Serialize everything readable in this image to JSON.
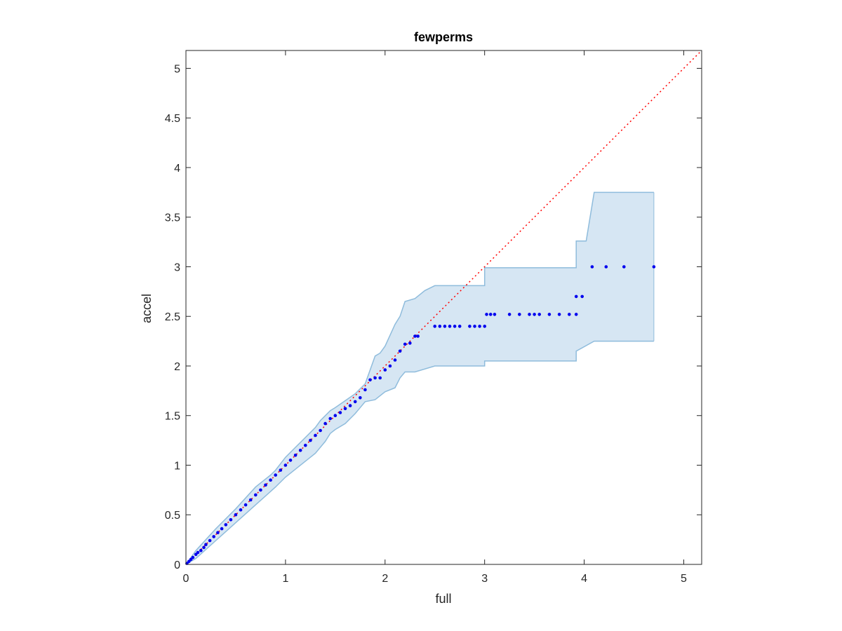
{
  "chart_data": {
    "type": "scatter",
    "title": "fewperms",
    "xlabel": "full",
    "ylabel": "accel",
    "xlim": [
      0,
      5.18
    ],
    "ylim": [
      0,
      5.18
    ],
    "xticks": [
      0,
      1,
      2,
      3,
      4,
      5
    ],
    "xtick_labels": [
      "0",
      "1",
      "2",
      "3",
      "4",
      "5"
    ],
    "yticks": [
      0,
      0.5,
      1,
      1.5,
      2,
      2.5,
      3,
      3.5,
      4,
      4.5,
      5
    ],
    "ytick_labels": [
      "0",
      "0.5",
      "1",
      "1.5",
      "2",
      "2.5",
      "3",
      "3.5",
      "4",
      "4.5",
      "5"
    ],
    "grid": false,
    "colors": {
      "points": "#0000ee",
      "band_fill": "#d6e6f3",
      "band_edge": "#8fbcdc",
      "reference_line": "#ff0000",
      "axes": "#262626"
    },
    "band": {
      "upper": [
        [
          0,
          0
        ],
        [
          0.1,
          0.14
        ],
        [
          0.3,
          0.36
        ],
        [
          0.5,
          0.56
        ],
        [
          0.7,
          0.78
        ],
        [
          0.85,
          0.9
        ],
        [
          0.9,
          0.95
        ],
        [
          1.0,
          1.08
        ],
        [
          1.1,
          1.18
        ],
        [
          1.2,
          1.28
        ],
        [
          1.3,
          1.38
        ],
        [
          1.35,
          1.45
        ],
        [
          1.45,
          1.55
        ],
        [
          1.5,
          1.58
        ],
        [
          1.6,
          1.65
        ],
        [
          1.7,
          1.72
        ],
        [
          1.8,
          1.82
        ],
        [
          1.85,
          1.96
        ],
        [
          1.9,
          2.1
        ],
        [
          1.95,
          2.13
        ],
        [
          2.0,
          2.2
        ],
        [
          2.1,
          2.42
        ],
        [
          2.15,
          2.5
        ],
        [
          2.2,
          2.65
        ],
        [
          2.3,
          2.68
        ],
        [
          2.4,
          2.76
        ],
        [
          2.5,
          2.81
        ],
        [
          3.0,
          2.81
        ],
        [
          3.0,
          2.99
        ],
        [
          3.92,
          2.99
        ],
        [
          3.92,
          3.26
        ],
        [
          4.02,
          3.26
        ],
        [
          4.1,
          3.75
        ],
        [
          4.7,
          3.75
        ]
      ],
      "lower": [
        [
          0,
          0
        ],
        [
          0.1,
          0.06
        ],
        [
          0.3,
          0.24
        ],
        [
          0.5,
          0.42
        ],
        [
          0.7,
          0.6
        ],
        [
          0.9,
          0.78
        ],
        [
          1.0,
          0.88
        ],
        [
          1.1,
          0.96
        ],
        [
          1.2,
          1.04
        ],
        [
          1.3,
          1.12
        ],
        [
          1.4,
          1.24
        ],
        [
          1.45,
          1.32
        ],
        [
          1.5,
          1.36
        ],
        [
          1.6,
          1.42
        ],
        [
          1.7,
          1.52
        ],
        [
          1.8,
          1.64
        ],
        [
          1.9,
          1.66
        ],
        [
          2.0,
          1.74
        ],
        [
          2.1,
          1.78
        ],
        [
          2.15,
          1.88
        ],
        [
          2.2,
          1.94
        ],
        [
          2.3,
          1.94
        ],
        [
          2.5,
          2.0
        ],
        [
          3.0,
          2.0
        ],
        [
          3.0,
          2.05
        ],
        [
          3.92,
          2.05
        ],
        [
          3.92,
          2.15
        ],
        [
          4.1,
          2.25
        ],
        [
          4.7,
          2.25
        ]
      ]
    },
    "reference_line": {
      "from": [
        0,
        0
      ],
      "to": [
        5.18,
        5.18
      ],
      "style": "dotted"
    },
    "points": [
      [
        0.01,
        0.01
      ],
      [
        0.03,
        0.03
      ],
      [
        0.05,
        0.05
      ],
      [
        0.07,
        0.07
      ],
      [
        0.1,
        0.1
      ],
      [
        0.12,
        0.12
      ],
      [
        0.15,
        0.14
      ],
      [
        0.18,
        0.17
      ],
      [
        0.2,
        0.2
      ],
      [
        0.24,
        0.24
      ],
      [
        0.28,
        0.28
      ],
      [
        0.32,
        0.32
      ],
      [
        0.36,
        0.36
      ],
      [
        0.4,
        0.4
      ],
      [
        0.45,
        0.45
      ],
      [
        0.5,
        0.5
      ],
      [
        0.55,
        0.55
      ],
      [
        0.6,
        0.6
      ],
      [
        0.65,
        0.65
      ],
      [
        0.7,
        0.7
      ],
      [
        0.75,
        0.75
      ],
      [
        0.8,
        0.8
      ],
      [
        0.85,
        0.85
      ],
      [
        0.9,
        0.9
      ],
      [
        0.95,
        0.95
      ],
      [
        1.0,
        1.0
      ],
      [
        1.05,
        1.05
      ],
      [
        1.1,
        1.1
      ],
      [
        1.15,
        1.15
      ],
      [
        1.2,
        1.2
      ],
      [
        1.25,
        1.25
      ],
      [
        1.3,
        1.3
      ],
      [
        1.35,
        1.35
      ],
      [
        1.4,
        1.42
      ],
      [
        1.45,
        1.47
      ],
      [
        1.5,
        1.5
      ],
      [
        1.55,
        1.53
      ],
      [
        1.6,
        1.57
      ],
      [
        1.65,
        1.6
      ],
      [
        1.7,
        1.64
      ],
      [
        1.75,
        1.68
      ],
      [
        1.8,
        1.76
      ],
      [
        1.85,
        1.86
      ],
      [
        1.9,
        1.88
      ],
      [
        1.95,
        1.88
      ],
      [
        2.0,
        1.96
      ],
      [
        2.05,
        2.0
      ],
      [
        2.1,
        2.06
      ],
      [
        2.15,
        2.15
      ],
      [
        2.2,
        2.22
      ],
      [
        2.25,
        2.23
      ],
      [
        2.3,
        2.3
      ],
      [
        2.33,
        2.3
      ],
      [
        2.5,
        2.4
      ],
      [
        2.55,
        2.4
      ],
      [
        2.6,
        2.4
      ],
      [
        2.65,
        2.4
      ],
      [
        2.7,
        2.4
      ],
      [
        2.75,
        2.4
      ],
      [
        2.85,
        2.4
      ],
      [
        2.9,
        2.4
      ],
      [
        2.95,
        2.4
      ],
      [
        3.0,
        2.4
      ],
      [
        3.02,
        2.52
      ],
      [
        3.06,
        2.52
      ],
      [
        3.1,
        2.52
      ],
      [
        3.25,
        2.52
      ],
      [
        3.35,
        2.52
      ],
      [
        3.45,
        2.52
      ],
      [
        3.5,
        2.52
      ],
      [
        3.55,
        2.52
      ],
      [
        3.65,
        2.52
      ],
      [
        3.75,
        2.52
      ],
      [
        3.85,
        2.52
      ],
      [
        3.92,
        2.52
      ],
      [
        3.92,
        2.7
      ],
      [
        3.98,
        2.7
      ],
      [
        4.08,
        3.0
      ],
      [
        4.22,
        3.0
      ],
      [
        4.4,
        3.0
      ],
      [
        4.7,
        3.0
      ]
    ]
  }
}
